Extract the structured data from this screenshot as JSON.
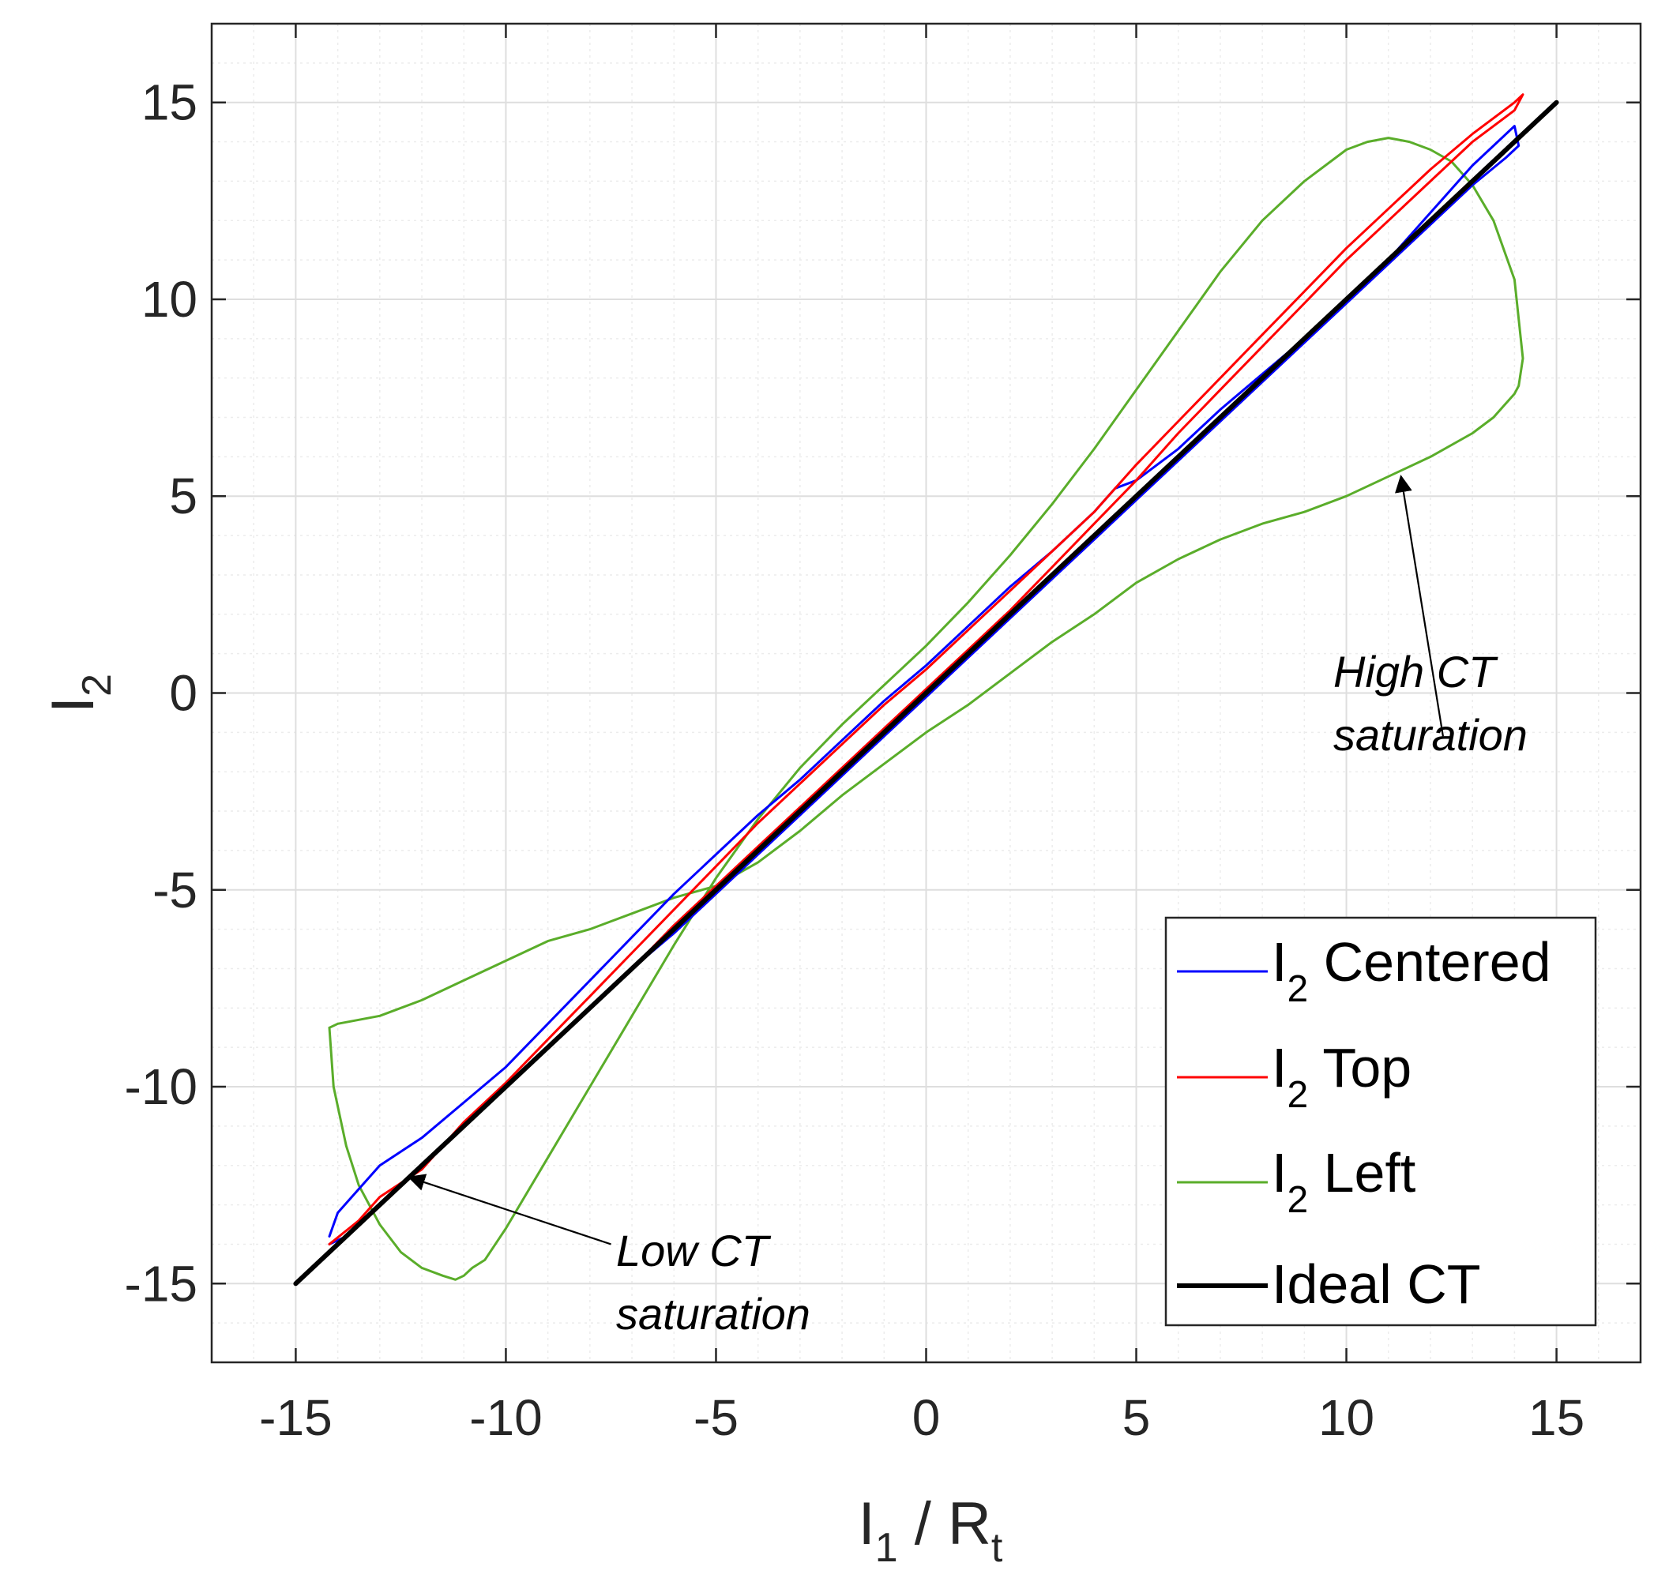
{
  "chart_data": {
    "type": "line",
    "xlabel": "I",
    "xlabel_sub": "1",
    "xlabel_suffix": " / R",
    "xlabel_suffix_sub": "t",
    "ylabel": "I",
    "ylabel_sub": "2",
    "xlim": [
      -17,
      17
    ],
    "ylim": [
      -17,
      17
    ],
    "xticks": [
      -15,
      -10,
      -5,
      0,
      5,
      10,
      15
    ],
    "yticks": [
      -15,
      -10,
      -5,
      0,
      5,
      10,
      15
    ],
    "xtick_labels": [
      "-15",
      "-10",
      "-5",
      "0",
      "5",
      "10",
      "15"
    ],
    "ytick_labels": [
      "-15",
      "-10",
      "-5",
      "0",
      "5",
      "10",
      "15"
    ],
    "grid": true,
    "minor_grid": true,
    "legend_position": "bottom-right",
    "series": [
      {
        "name": "I",
        "name_sub": "2",
        "name_suffix": " Centered",
        "color": "#0000ff",
        "x": [
          -14.2,
          -14.0,
          -13.5,
          -13.0,
          -12.0,
          -11.0,
          -10.0,
          -9.0,
          -8.0,
          -7.0,
          -6.0,
          -5.0,
          -4.0,
          -3.0,
          -2.0,
          -1.0,
          0.0,
          1.0,
          2.0,
          3.0,
          4.0,
          4.5,
          5.0,
          6.0,
          7.0,
          8.0,
          9.0,
          10.0,
          11.0,
          12.0,
          13.0,
          14.0,
          14.1,
          13.8,
          13.0,
          12.0,
          11.0,
          10.0,
          9.0,
          8.0,
          7.0,
          6.0,
          5.0,
          4.0,
          3.0,
          2.0,
          1.0,
          0.0,
          -1.0,
          -2.0,
          -3.0,
          -4.0,
          -5.0,
          -6.0,
          -7.0,
          -8.0,
          -9.0,
          -10.0,
          -11.0,
          -12.0,
          -13.0,
          -13.8,
          -14.2
        ],
        "y": [
          -13.8,
          -13.2,
          -12.6,
          -12.0,
          -11.3,
          -10.4,
          -9.5,
          -8.4,
          -7.3,
          -6.2,
          -5.1,
          -4.1,
          -3.1,
          -2.2,
          -1.2,
          -0.2,
          0.7,
          1.7,
          2.7,
          3.6,
          4.6,
          5.2,
          5.4,
          6.2,
          7.2,
          8.1,
          9.0,
          10.0,
          11.0,
          12.2,
          13.4,
          14.4,
          13.9,
          13.6,
          12.9,
          11.9,
          10.9,
          9.9,
          8.9,
          7.9,
          6.9,
          5.9,
          4.9,
          3.9,
          2.9,
          1.9,
          0.9,
          -0.1,
          -1.1,
          -2.1,
          -3.1,
          -4.1,
          -5.1,
          -6.1,
          -7.0,
          -8.0,
          -9.0,
          -10.0,
          -11.0,
          -12.0,
          -13.0,
          -13.8,
          -14.0
        ]
      },
      {
        "name": "I",
        "name_sub": "2",
        "name_suffix": " Top",
        "color": "#ff0000",
        "x": [
          -14.2,
          -13.5,
          -13.0,
          -12.0,
          -11.0,
          -10.0,
          -9.0,
          -8.0,
          -7.0,
          -6.0,
          -5.0,
          -4.0,
          -3.0,
          -2.0,
          -1.0,
          0.0,
          1.0,
          2.0,
          3.0,
          4.0,
          5.0,
          6.0,
          7.0,
          8.0,
          9.0,
          10.0,
          11.0,
          12.0,
          13.0,
          14.0,
          14.2,
          14.0,
          13.0,
          12.0,
          11.0,
          10.0,
          9.0,
          8.0,
          7.0,
          6.0,
          5.0,
          4.0,
          3.0,
          2.0,
          1.0,
          0.0,
          -1.0,
          -2.0,
          -3.0,
          -4.0,
          -5.0,
          -6.0,
          -7.0,
          -8.0,
          -9.0,
          -10.0,
          -11.0,
          -12.0,
          -13.0,
          -14.0
        ],
        "y": [
          -14.0,
          -13.4,
          -12.8,
          -12.1,
          -10.9,
          -9.9,
          -8.8,
          -7.7,
          -6.6,
          -5.5,
          -4.4,
          -3.3,
          -2.3,
          -1.3,
          -0.3,
          0.6,
          1.6,
          2.6,
          3.6,
          4.6,
          5.8,
          6.9,
          8.0,
          9.1,
          10.2,
          11.3,
          12.3,
          13.3,
          14.2,
          15.0,
          15.2,
          14.8,
          14.0,
          13.0,
          12.0,
          11.0,
          9.9,
          8.8,
          7.7,
          6.6,
          5.4,
          4.3,
          3.2,
          2.1,
          1.1,
          0.1,
          -0.9,
          -1.9,
          -2.9,
          -3.9,
          -4.9,
          -5.9,
          -7.0,
          -8.0,
          -9.0,
          -10.0,
          -11.0,
          -12.0,
          -13.0,
          -14.0
        ]
      },
      {
        "name": "I",
        "name_sub": "2",
        "name_suffix": " Left",
        "color": "#5aad2a",
        "x": [
          -14.2,
          -14.1,
          -13.8,
          -13.5,
          -13.0,
          -12.5,
          -12.0,
          -11.5,
          -11.2,
          -11.0,
          -10.8,
          -10.5,
          -10.0,
          -9.0,
          -8.0,
          -7.0,
          -6.0,
          -5.0,
          -4.0,
          -3.0,
          -2.0,
          -1.0,
          0.0,
          1.0,
          2.0,
          3.0,
          4.0,
          5.0,
          6.0,
          7.0,
          8.0,
          9.0,
          10.0,
          10.5,
          11.0,
          11.5,
          12.0,
          12.5,
          13.0,
          13.5,
          14.0,
          14.2,
          14.1,
          14.0,
          13.5,
          13.0,
          12.0,
          11.0,
          10.0,
          9.0,
          8.0,
          7.0,
          6.0,
          5.0,
          4.0,
          3.0,
          2.0,
          1.0,
          0.0,
          -1.0,
          -2.0,
          -3.0,
          -4.0,
          -5.0,
          -6.0,
          -7.0,
          -8.0,
          -9.0,
          -10.0,
          -11.0,
          -12.0,
          -13.0,
          -13.5,
          -14.0,
          -14.2
        ],
        "y": [
          -8.5,
          -10.0,
          -11.5,
          -12.5,
          -13.5,
          -14.2,
          -14.6,
          -14.8,
          -14.9,
          -14.8,
          -14.6,
          -14.4,
          -13.6,
          -11.8,
          -10.0,
          -8.2,
          -6.4,
          -4.7,
          -3.2,
          -1.9,
          -0.8,
          0.2,
          1.2,
          2.3,
          3.5,
          4.8,
          6.2,
          7.7,
          9.2,
          10.7,
          12.0,
          13.0,
          13.8,
          14.0,
          14.1,
          14.0,
          13.8,
          13.5,
          12.9,
          12.0,
          10.5,
          8.5,
          7.8,
          7.6,
          7.0,
          6.6,
          6.0,
          5.5,
          5.0,
          4.6,
          4.3,
          3.9,
          3.4,
          2.8,
          2.0,
          1.3,
          0.5,
          -0.3,
          -1.0,
          -1.8,
          -2.6,
          -3.5,
          -4.3,
          -4.9,
          -5.2,
          -5.6,
          -6.0,
          -6.3,
          -6.8,
          -7.3,
          -7.8,
          -8.2,
          -8.3,
          -8.4,
          -8.5
        ]
      },
      {
        "name": "Ideal CT",
        "color": "#000000",
        "x": [
          -15,
          15
        ],
        "y": [
          -15,
          15
        ]
      }
    ],
    "annotations": [
      {
        "text": [
          "High CT",
          "saturation"
        ],
        "from": [
          12.3,
          -1.1
        ],
        "to": [
          11.3,
          5.5
        ]
      },
      {
        "text": [
          "Low CT",
          "saturation"
        ],
        "from": [
          -7.5,
          -14.0
        ],
        "to": [
          -12.3,
          -12.3
        ]
      }
    ]
  }
}
